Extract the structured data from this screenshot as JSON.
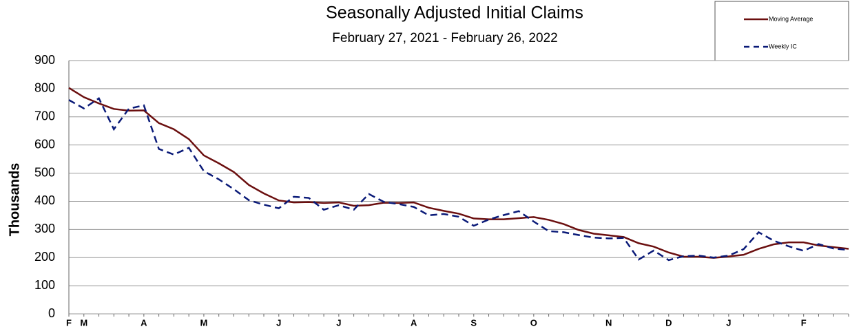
{
  "chart_data": {
    "type": "line",
    "title": "Seasonally Adjusted Initial Claims",
    "subtitle": "February 27, 2021 - February 26, 2022",
    "y_label": "Thousands",
    "categories": [
      "F",
      "M",
      null,
      null,
      null,
      "A",
      null,
      null,
      null,
      "M",
      null,
      null,
      null,
      null,
      "J",
      null,
      null,
      null,
      "J",
      null,
      null,
      null,
      null,
      "A",
      null,
      null,
      null,
      "S",
      null,
      null,
      null,
      "O",
      null,
      null,
      null,
      null,
      "N",
      null,
      null,
      null,
      "D",
      null,
      null,
      null,
      "J",
      null,
      null,
      null,
      null,
      "F",
      null,
      null,
      null
    ],
    "series": [
      {
        "name": "Moving Average",
        "color": "#6b0f0f",
        "style": "solid",
        "values": [
          803,
          770,
          748,
          728,
          722,
          723,
          678,
          656,
          621,
          563,
          535,
          504,
          458,
          428,
          403,
          396,
          397,
          394,
          396,
          384,
          386,
          395,
          394,
          396,
          377,
          366,
          356,
          339,
          336,
          336,
          340,
          344,
          334,
          319,
          298,
          285,
          279,
          273,
          251,
          239,
          218,
          203,
          203,
          199,
          204,
          210,
          231,
          247,
          254,
          254,
          243,
          237,
          231
        ]
      },
      {
        "name": "Weekly IC",
        "color": "#0a1a78",
        "style": "dashed",
        "values": [
          760,
          730,
          766,
          656,
          729,
          741,
          586,
          566,
          590,
          507,
          478,
          443,
          404,
          388,
          375,
          416,
          412,
          370,
          386,
          370,
          426,
          398,
          390,
          380,
          350,
          355,
          345,
          313,
          335,
          351,
          365,
          328,
          294,
          290,
          280,
          271,
          268,
          270,
          193,
          225,
          191,
          205,
          207,
          200,
          207,
          230,
          290,
          260,
          240,
          224,
          248,
          232,
          227
        ]
      }
    ],
    "ylim": [
      0,
      900
    ],
    "yticks": [
      0,
      100,
      200,
      300,
      400,
      500,
      600,
      700,
      800,
      900
    ],
    "grid": true,
    "legend": "top-right"
  }
}
